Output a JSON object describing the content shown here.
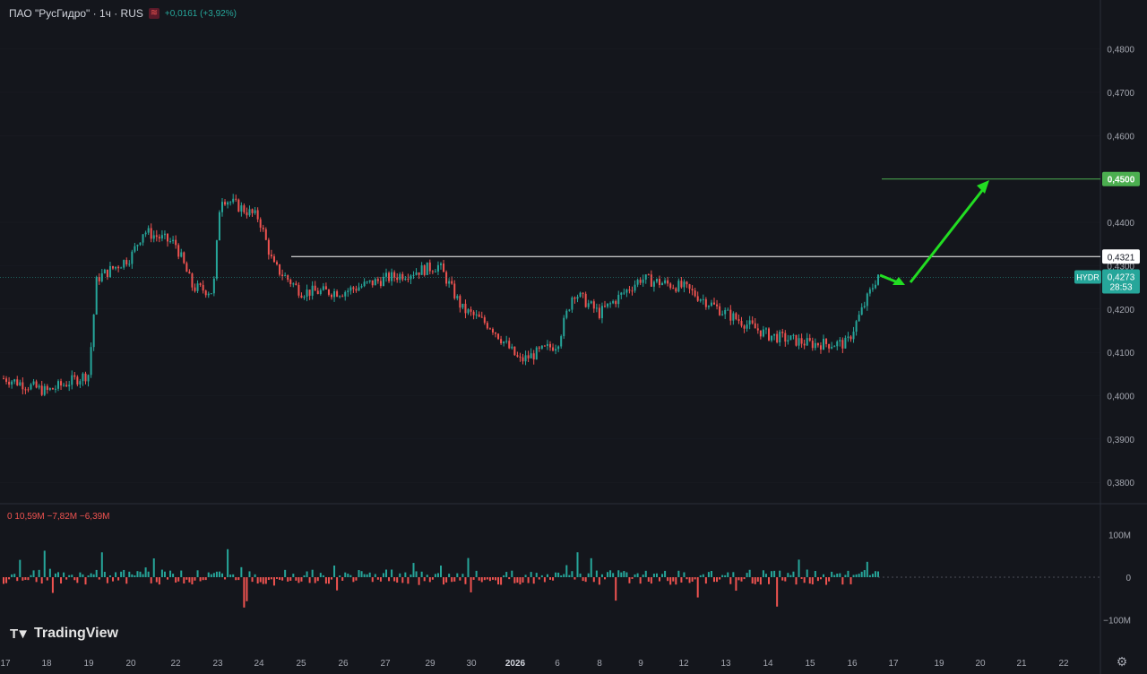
{
  "header": {
    "title": "ПАО \"РусГидро\" · 1ч · RUS",
    "change": "+0,0161 (+3,92%)",
    "icon": "compare-icon"
  },
  "volume_header": "0  10,59M  −7,82M  −6,39M",
  "branding": {
    "name": "TradingView",
    "icon": "tradingview-logo-icon"
  },
  "settings_icon": "gear-icon",
  "colors": {
    "up": "#26a69a",
    "down": "#ef5350",
    "bg": "#14161c",
    "grid": "#2a2e39",
    "text": "#a3a6af",
    "target_line": "#4caf50",
    "arrow": "#22dd22",
    "resistance": "#ffffff"
  },
  "chart_data": [
    {
      "type": "candlestick",
      "symbol": "HYDR",
      "price_axis_labels": [
        "0,4800",
        "0,4700",
        "0,4600",
        "0,4400",
        "0,4300",
        "0,4200",
        "0,4100",
        "0,4000",
        "0,3900",
        "0,3800"
      ],
      "ylim": [
        0.3755,
        0.4855
      ],
      "x_axis_labels": [
        "17",
        "18",
        "19",
        "20",
        "22",
        "23",
        "24",
        "25",
        "26",
        "27",
        "29",
        "30",
        "2026",
        "6",
        "8",
        "9",
        "12",
        "13",
        "14",
        "15",
        "16",
        "17",
        "19",
        "20",
        "21",
        "22"
      ],
      "last_price": "0,4273",
      "countdown": "28:53",
      "annotations": {
        "target_level": {
          "value": 0.45,
          "label": "0,4500"
        },
        "resistance_level": {
          "value": 0.4321,
          "label": "0,4321"
        },
        "arrows": [
          "down-right short arrow",
          "up-right arrow to target"
        ]
      },
      "closes_anchors": [
        {
          "x": "17",
          "close": 0.404
        },
        {
          "x": "18",
          "close": 0.401
        },
        {
          "x": "19",
          "close": 0.405
        },
        {
          "x": "19",
          "close": 0.427
        },
        {
          "x": "20",
          "close": 0.432
        },
        {
          "x": "20",
          "close": 0.438
        },
        {
          "x": "22",
          "close": 0.435
        },
        {
          "x": "22",
          "close": 0.425
        },
        {
          "x": "23",
          "close": 0.424
        },
        {
          "x": "23",
          "close": 0.446
        },
        {
          "x": "24",
          "close": 0.441
        },
        {
          "x": "24",
          "close": 0.43
        },
        {
          "x": "25",
          "close": 0.424
        },
        {
          "x": "26",
          "close": 0.424
        },
        {
          "x": "27",
          "close": 0.427
        },
        {
          "x": "29",
          "close": 0.43
        },
        {
          "x": "30",
          "close": 0.42
        },
        {
          "x": "30",
          "close": 0.416
        },
        {
          "x": "2026",
          "close": 0.408
        },
        {
          "x": "6",
          "close": 0.412
        },
        {
          "x": "6",
          "close": 0.424
        },
        {
          "x": "8",
          "close": 0.419
        },
        {
          "x": "9",
          "close": 0.427
        },
        {
          "x": "12",
          "close": 0.425
        },
        {
          "x": "13",
          "close": 0.419
        },
        {
          "x": "14",
          "close": 0.414
        },
        {
          "x": "15",
          "close": 0.412
        },
        {
          "x": "16",
          "close": 0.412
        },
        {
          "x": "16",
          "close": 0.428
        }
      ],
      "volume_axis_labels": [
        "100M",
        "0",
        "−100M"
      ],
      "volume_ylim": [
        -170,
        170
      ]
    }
  ]
}
